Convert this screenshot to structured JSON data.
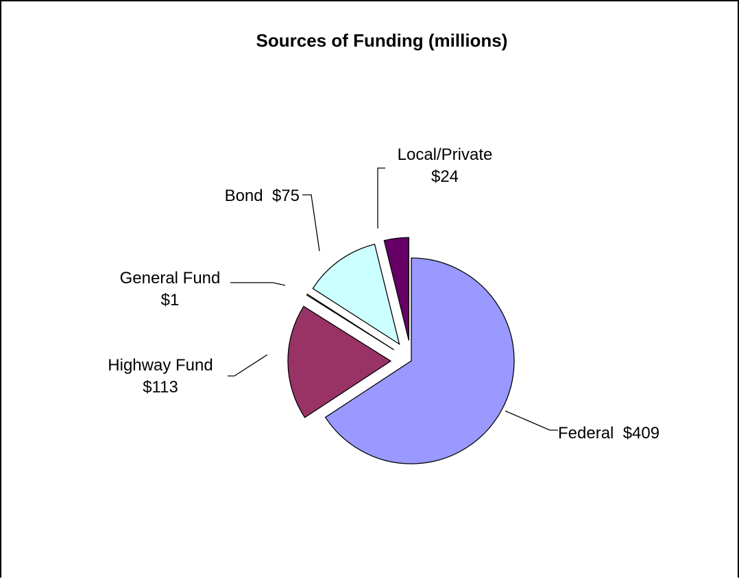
{
  "chart_data": {
    "type": "pie",
    "title": "Sources of Funding (millions)",
    "slices": [
      {
        "category": "Federal",
        "value": 409,
        "label_lines": [
          "Federal  $409"
        ],
        "color": "#9999ff",
        "exploded": false
      },
      {
        "category": "Highway Fund",
        "value": 113,
        "label_lines": [
          "Highway Fund",
          "$113"
        ],
        "color": "#993366",
        "exploded": true
      },
      {
        "category": "General Fund",
        "value": 1,
        "label_lines": [
          "General Fund",
          "$1"
        ],
        "color": "#ffffcc",
        "exploded": true
      },
      {
        "category": "Bond",
        "value": 75,
        "label_lines": [
          "Bond  $75"
        ],
        "color": "#ccffff",
        "exploded": true
      },
      {
        "category": "Local/Private",
        "value": 24,
        "label_lines": [
          "Local/Private",
          "$24"
        ],
        "color": "#660066",
        "exploded": true
      }
    ],
    "legend": "none"
  }
}
